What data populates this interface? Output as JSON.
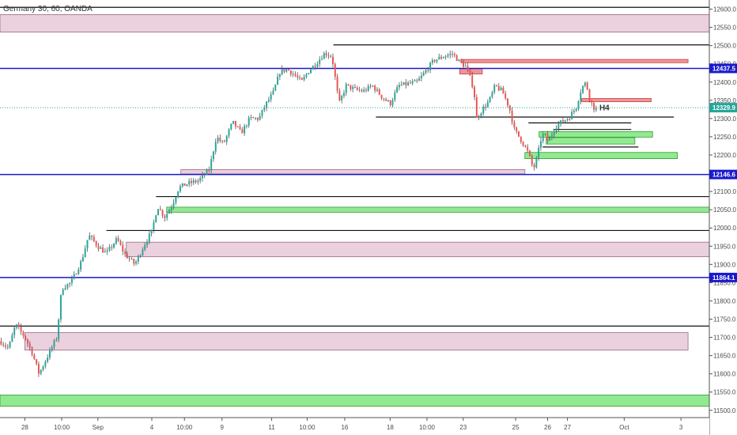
{
  "chart_data": {
    "type": "candlestick",
    "title": "Germany 30, 60, OANDA",
    "ylim": [
      11480,
      12625
    ],
    "y_ticks": [
      11500,
      11550,
      11600,
      11650,
      11700,
      11750,
      11800,
      11850,
      11900,
      11950,
      12000,
      12050,
      12100,
      12150,
      12200,
      12250,
      12300,
      12350,
      12400,
      12450,
      12500,
      12550,
      12600
    ],
    "y_tick_labels": [
      "11500.0",
      "11550.0",
      "11600.0",
      "11650.0",
      "11700.0",
      "11750.0",
      "11800.0",
      "11850.0",
      "11900.0",
      "11950.0",
      "12000.0",
      "12050.0",
      "12100.0",
      "12150.0",
      "12200.0",
      "12250.0",
      "12300.0",
      "12350.0",
      "12400.0",
      "12450.0",
      "12500.0",
      "12550.0",
      "12600.0"
    ],
    "x_labels": [
      "28",
      "10:00",
      "Sep",
      "4",
      "10:00",
      "9",
      "11",
      "10:00",
      "16",
      "18",
      "10:00",
      "23",
      "25",
      "26",
      "27",
      "Oct",
      "3"
    ],
    "x_label_pos": [
      0.035,
      0.087,
      0.138,
      0.214,
      0.26,
      0.313,
      0.383,
      0.433,
      0.486,
      0.55,
      0.602,
      0.653,
      0.727,
      0.772,
      0.8,
      0.88,
      0.96
    ],
    "annotation": "H4",
    "annotation_price": 12322,
    "current_price": 12329.9,
    "colors": {
      "up": "#26a69a",
      "down": "#ef5350",
      "wick": "#555555",
      "blue_line": "#1a1acc",
      "green_zone": "#7fe57f",
      "pink_zone": "#e8c8d8",
      "red_zone": "#ee8080"
    },
    "price_tags": [
      {
        "value": 12437.5,
        "label": "12437.5",
        "color": "#1a1acc"
      },
      {
        "value": 12329.9,
        "label": "12329.9",
        "color": "#26a69a"
      },
      {
        "value": 12146.6,
        "label": "12146.6",
        "color": "#1a1acc"
      },
      {
        "value": 11864.1,
        "label": "11864.1",
        "color": "#1a1acc"
      }
    ],
    "blue_levels": [
      12437.5,
      12146.6,
      11864.1
    ],
    "black_levels": [
      {
        "y": 12605,
        "x0": 0.0,
        "x1": 1.0
      },
      {
        "y": 12502,
        "x0": 0.47,
        "x1": 1.0
      },
      {
        "y": 12304,
        "x0": 0.53,
        "x1": 0.95
      },
      {
        "y": 12288,
        "x0": 0.745,
        "x1": 0.89
      },
      {
        "y": 12270,
        "x0": 0.78,
        "x1": 0.89
      },
      {
        "y": 12222,
        "x0": 0.765,
        "x1": 0.9
      },
      {
        "y": 12086,
        "x0": 0.22,
        "x1": 1.0
      },
      {
        "y": 11993,
        "x0": 0.15,
        "x1": 1.0
      },
      {
        "y": 11731,
        "x0": 0.0,
        "x1": 1.0
      }
    ],
    "zones": [
      {
        "kind": "pink",
        "top": 12585,
        "bottom": 12537,
        "x0": 0.0,
        "x1": 1.0
      },
      {
        "kind": "red",
        "top": 12462,
        "bottom": 12453,
        "x0": 0.65,
        "x1": 0.97
      },
      {
        "kind": "red",
        "top": 12437,
        "bottom": 12422,
        "x0": 0.648,
        "x1": 0.68
      },
      {
        "kind": "red",
        "top": 12355,
        "bottom": 12346,
        "x0": 0.82,
        "x1": 0.918
      },
      {
        "kind": "green",
        "top": 12264,
        "bottom": 12249,
        "x0": 0.76,
        "x1": 0.92
      },
      {
        "kind": "green",
        "top": 12248,
        "bottom": 12230,
        "x0": 0.77,
        "x1": 0.895
      },
      {
        "kind": "green",
        "top": 12207,
        "bottom": 12190,
        "x0": 0.74,
        "x1": 0.955
      },
      {
        "kind": "pink",
        "top": 12160,
        "bottom": 12148,
        "x0": 0.255,
        "x1": 0.74
      },
      {
        "kind": "green",
        "top": 12057,
        "bottom": 12043,
        "x0": 0.235,
        "x1": 1.0
      },
      {
        "kind": "pink",
        "top": 11961,
        "bottom": 11921,
        "x0": 0.178,
        "x1": 1.0
      },
      {
        "kind": "pink",
        "top": 11713,
        "bottom": 11665,
        "x0": 0.035,
        "x1": 0.97
      },
      {
        "kind": "green",
        "top": 11542,
        "bottom": 11511,
        "x0": 0.0,
        "x1": 1.0
      }
    ],
    "anchors": [
      [
        0.0,
        11690
      ],
      [
        0.012,
        11670
      ],
      [
        0.022,
        11735
      ],
      [
        0.035,
        11700
      ],
      [
        0.045,
        11660
      ],
      [
        0.055,
        11600
      ],
      [
        0.07,
        11660
      ],
      [
        0.08,
        11700
      ],
      [
        0.087,
        11835
      ],
      [
        0.1,
        11850
      ],
      [
        0.115,
        11910
      ],
      [
        0.125,
        11980
      ],
      [
        0.138,
        11950
      ],
      [
        0.15,
        11930
      ],
      [
        0.165,
        11970
      ],
      [
        0.175,
        11930
      ],
      [
        0.19,
        11900
      ],
      [
        0.205,
        11960
      ],
      [
        0.214,
        11990
      ],
      [
        0.222,
        12060
      ],
      [
        0.232,
        12030
      ],
      [
        0.242,
        12060
      ],
      [
        0.252,
        12110
      ],
      [
        0.262,
        12120
      ],
      [
        0.28,
        12130
      ],
      [
        0.295,
        12160
      ],
      [
        0.305,
        12250
      ],
      [
        0.315,
        12230
      ],
      [
        0.328,
        12290
      ],
      [
        0.34,
        12260
      ],
      [
        0.352,
        12300
      ],
      [
        0.365,
        12300
      ],
      [
        0.375,
        12340
      ],
      [
        0.385,
        12370
      ],
      [
        0.395,
        12430
      ],
      [
        0.405,
        12435
      ],
      [
        0.415,
        12420
      ],
      [
        0.425,
        12400
      ],
      [
        0.435,
        12430
      ],
      [
        0.445,
        12450
      ],
      [
        0.458,
        12480
      ],
      [
        0.468,
        12470
      ],
      [
        0.478,
        12340
      ],
      [
        0.488,
        12390
      ],
      [
        0.5,
        12380
      ],
      [
        0.512,
        12375
      ],
      [
        0.525,
        12390
      ],
      [
        0.538,
        12360
      ],
      [
        0.55,
        12340
      ],
      [
        0.562,
        12390
      ],
      [
        0.575,
        12395
      ],
      [
        0.588,
        12400
      ],
      [
        0.6,
        12430
      ],
      [
        0.612,
        12460
      ],
      [
        0.625,
        12470
      ],
      [
        0.638,
        12478
      ],
      [
        0.648,
        12455
      ],
      [
        0.658,
        12440
      ],
      [
        0.668,
        12380
      ],
      [
        0.672,
        12300
      ],
      [
        0.68,
        12325
      ],
      [
        0.69,
        12350
      ],
      [
        0.698,
        12390
      ],
      [
        0.708,
        12375
      ],
      [
        0.718,
        12330
      ],
      [
        0.725,
        12270
      ],
      [
        0.735,
        12240
      ],
      [
        0.745,
        12205
      ],
      [
        0.752,
        12160
      ],
      [
        0.758,
        12200
      ],
      [
        0.762,
        12240
      ],
      [
        0.767,
        12260
      ],
      [
        0.773,
        12235
      ],
      [
        0.782,
        12275
      ],
      [
        0.792,
        12292
      ],
      [
        0.802,
        12302
      ],
      [
        0.812,
        12330
      ],
      [
        0.82,
        12385
      ],
      [
        0.826,
        12398
      ],
      [
        0.832,
        12350
      ],
      [
        0.837,
        12330
      ],
      [
        0.842,
        12325
      ]
    ]
  }
}
